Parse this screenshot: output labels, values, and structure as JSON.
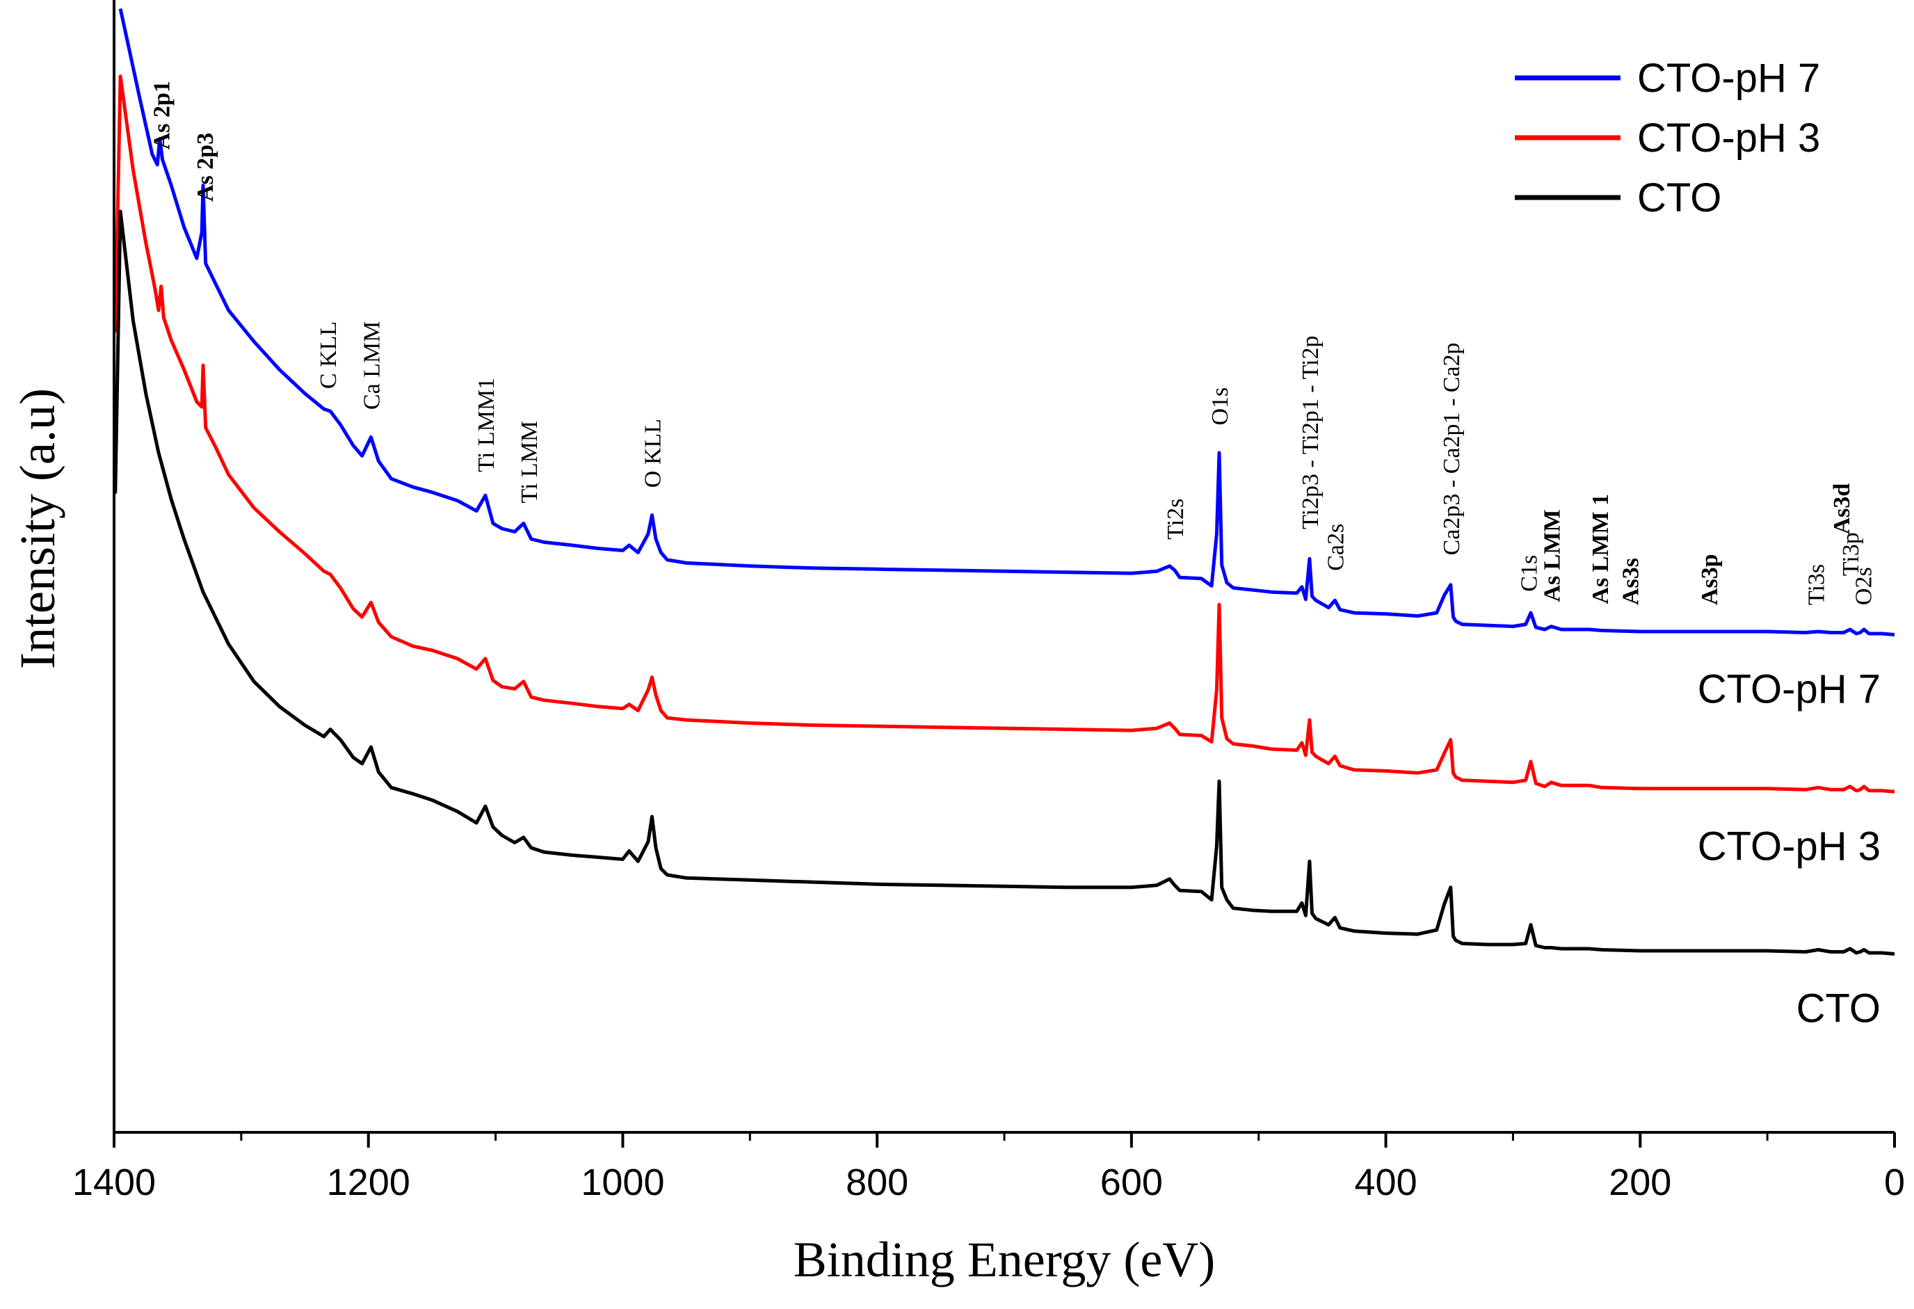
{
  "chart_data": {
    "type": "line",
    "title": "",
    "xlabel": "Binding Energy (eV)",
    "ylabel": "Intensity (a.u)",
    "xlim": [
      1400,
      0
    ],
    "ylim": [
      0,
      100
    ],
    "x_ticks": [
      1400,
      1200,
      1000,
      800,
      600,
      400,
      200,
      0
    ],
    "x_tick_labels": [
      "1400",
      "1200",
      "1000",
      "800",
      "600",
      "400",
      "200",
      "0"
    ],
    "legend": {
      "placement": "top-right",
      "entries": [
        {
          "name": "CTO-pH 7",
          "color": "#0000ff"
        },
        {
          "name": "CTO-pH 3",
          "color": "#ff0000"
        },
        {
          "name": "CTO",
          "color": "#000000"
        }
      ]
    },
    "series": [
      {
        "name": "CTO-pH 7",
        "color": "#0000ff",
        "right_label": "CTO-pH 7",
        "x": [
          1395,
          1380,
          1370,
          1366,
          1364,
          1362,
          1355,
          1345,
          1335,
          1331,
          1330,
          1328,
          1320,
          1310,
          1290,
          1270,
          1250,
          1235,
          1230,
          1222,
          1212,
          1205,
          1198,
          1192,
          1182,
          1165,
          1150,
          1130,
          1115,
          1108,
          1102,
          1095,
          1085,
          1078,
          1072,
          1062,
          1040,
          1020,
          1000,
          995,
          988,
          980,
          977,
          974,
          970,
          965,
          950,
          900,
          850,
          800,
          750,
          700,
          650,
          600,
          580,
          570,
          566,
          562,
          545,
          537,
          533,
          531,
          529,
          525,
          520,
          505,
          490,
          470,
          466,
          463,
          460,
          458,
          455,
          445,
          440,
          436,
          425,
          400,
          375,
          360,
          354,
          349,
          347,
          345,
          340,
          320,
          300,
          290,
          286,
          282,
          275,
          270,
          262,
          240,
          230,
          200,
          150,
          100,
          70,
          60,
          50,
          40,
          35,
          30,
          27,
          24,
          20,
          10,
          0
        ],
        "y": [
          100.5,
          92,
          86.5,
          85.5,
          88,
          86,
          83.5,
          79.5,
          76.5,
          79,
          83.5,
          76,
          74,
          71.5,
          68.5,
          65.8,
          63.5,
          62,
          61.8,
          60.5,
          58.5,
          57.5,
          59.3,
          57,
          55.3,
          54.5,
          54,
          53.2,
          52.2,
          53.7,
          51,
          50.5,
          50.2,
          51,
          49.5,
          49.2,
          48.9,
          48.6,
          48.4,
          48.9,
          48.2,
          50,
          51.8,
          49.5,
          48.2,
          47.5,
          47.2,
          46.9,
          46.7,
          46.6,
          46.5,
          46.4,
          46.3,
          46.2,
          46.4,
          46.9,
          46.5,
          45.8,
          45.7,
          45,
          50,
          57.8,
          47,
          45.3,
          44.8,
          44.6,
          44.4,
          44.3,
          44.9,
          43.7,
          47.6,
          44,
          43.6,
          42.9,
          43.6,
          42.7,
          42.4,
          42.3,
          42.1,
          42.4,
          44.1,
          45.1,
          42,
          41.6,
          41.3,
          41.2,
          41.1,
          41.3,
          42.4,
          41,
          40.8,
          41.1,
          40.8,
          40.8,
          40.7,
          40.6,
          40.6,
          40.6,
          40.5,
          40.6,
          40.5,
          40.5,
          40.8,
          40.4,
          40.5,
          40.8,
          40.4,
          40.4,
          40.3
        ]
      },
      {
        "name": "CTO-pH 3",
        "color": "#ff0000",
        "right_label": "CTO-pH 3",
        "x": [
          1400,
          1399,
          1395,
          1385,
          1375,
          1368,
          1365,
          1363,
          1361,
          1355,
          1345,
          1335,
          1331,
          1330,
          1328,
          1320,
          1310,
          1290,
          1270,
          1250,
          1235,
          1230,
          1222,
          1212,
          1205,
          1198,
          1192,
          1182,
          1165,
          1150,
          1130,
          1115,
          1108,
          1102,
          1095,
          1085,
          1078,
          1072,
          1062,
          1040,
          1020,
          1000,
          995,
          988,
          980,
          977,
          974,
          970,
          965,
          950,
          900,
          850,
          800,
          750,
          700,
          650,
          600,
          580,
          570,
          566,
          562,
          545,
          537,
          533,
          531,
          529,
          525,
          520,
          505,
          490,
          470,
          466,
          463,
          460,
          458,
          455,
          445,
          440,
          436,
          425,
          400,
          375,
          360,
          354,
          349,
          347,
          345,
          340,
          320,
          300,
          290,
          286,
          282,
          275,
          270,
          262,
          240,
          230,
          200,
          150,
          100,
          70,
          60,
          50,
          40,
          35,
          30,
          27,
          24,
          20,
          10,
          0
        ],
        "y": [
          69.5,
          69.5,
          94,
          85,
          78,
          73.7,
          71.5,
          73.8,
          70.8,
          68.6,
          65.8,
          62.7,
          62.2,
          66.2,
          60.2,
          58.3,
          55.7,
          52.5,
          50.2,
          48.1,
          46.4,
          46.1,
          44.8,
          42.8,
          42,
          43.4,
          41.5,
          40.1,
          39.2,
          38.8,
          38,
          37,
          38,
          35.9,
          35.3,
          35.1,
          35.8,
          34.3,
          34,
          33.7,
          33.4,
          33.2,
          33.6,
          33,
          35,
          36.2,
          34.5,
          33,
          32.3,
          32.1,
          31.8,
          31.6,
          31.5,
          31.4,
          31.3,
          31.2,
          31.1,
          31.3,
          31.8,
          31.3,
          30.7,
          30.6,
          30,
          35,
          43.2,
          32.3,
          30.3,
          29.8,
          29.6,
          29.3,
          29.2,
          29.9,
          28.7,
          32.1,
          29,
          28.6,
          27.9,
          28.6,
          27.7,
          27.3,
          27.2,
          27,
          27.3,
          28.9,
          30.2,
          27,
          26.6,
          26.3,
          26.2,
          26.1,
          26.3,
          28.1,
          26,
          25.7,
          26.1,
          25.8,
          25.8,
          25.6,
          25.5,
          25.5,
          25.5,
          25.4,
          25.6,
          25.4,
          25.4,
          25.7,
          25.3,
          25.4,
          25.7,
          25.3,
          25.3,
          25.2
        ]
      },
      {
        "name": "CTO",
        "color": "#000000",
        "right_label": "CTO",
        "x": [
          1400,
          1399,
          1395,
          1385,
          1375,
          1365,
          1355,
          1345,
          1330,
          1310,
          1290,
          1270,
          1250,
          1235,
          1230,
          1222,
          1212,
          1205,
          1198,
          1192,
          1182,
          1165,
          1150,
          1130,
          1115,
          1108,
          1102,
          1095,
          1085,
          1078,
          1072,
          1062,
          1040,
          1020,
          1000,
          995,
          988,
          980,
          977,
          974,
          970,
          965,
          950,
          900,
          850,
          800,
          750,
          700,
          650,
          600,
          580,
          570,
          566,
          562,
          545,
          537,
          533,
          531,
          529,
          525,
          520,
          505,
          490,
          470,
          466,
          463,
          460,
          458,
          455,
          445,
          440,
          436,
          425,
          400,
          375,
          360,
          354,
          349,
          347,
          345,
          340,
          320,
          300,
          290,
          286,
          282,
          275,
          270,
          262,
          240,
          230,
          200,
          150,
          100,
          70,
          60,
          50,
          40,
          35,
          30,
          27,
          24,
          20,
          10,
          0
        ],
        "y": [
          54,
          54,
          81,
          70.5,
          63.5,
          57.8,
          53.3,
          49.5,
          44.4,
          39.4,
          35.8,
          33.4,
          31.6,
          30.5,
          31.2,
          30.2,
          28.5,
          27.9,
          29.5,
          27.1,
          25.6,
          25,
          24.4,
          23.3,
          22.2,
          23.8,
          21.8,
          21,
          20.3,
          20.8,
          19.8,
          19.4,
          19.1,
          18.9,
          18.7,
          19.5,
          18.5,
          20.4,
          22.8,
          19.8,
          17.8,
          17.2,
          16.9,
          16.7,
          16.5,
          16.3,
          16.2,
          16.1,
          16,
          16,
          16.2,
          16.8,
          16.2,
          15.7,
          15.6,
          14.8,
          20,
          26.2,
          16,
          14.8,
          14,
          13.8,
          13.7,
          13.7,
          14.5,
          13.3,
          18.5,
          13.5,
          13,
          12.4,
          13.1,
          12.1,
          11.8,
          11.6,
          11.5,
          11.9,
          14.4,
          16,
          11.3,
          10.9,
          10.6,
          10.5,
          10.5,
          10.6,
          12.4,
          10.4,
          10.2,
          10.2,
          10.1,
          10.1,
          10,
          9.9,
          9.9,
          9.9,
          9.8,
          10,
          9.8,
          9.8,
          10.1,
          9.7,
          9.8,
          10,
          9.7,
          9.7,
          9.6
        ]
      }
    ],
    "peak_annotations": [
      {
        "text": "As 2p1",
        "x": 1363,
        "y": 86,
        "bold": true
      },
      {
        "text": "As 2p3",
        "x": 1329,
        "y": 81,
        "bold": true
      },
      {
        "text": "C KLL",
        "x": 1232,
        "y": 63,
        "bold": false
      },
      {
        "text": "Ca LMM",
        "x": 1198,
        "y": 61,
        "bold": false
      },
      {
        "text": "Ti LMM1",
        "x": 1108,
        "y": 55,
        "bold": false
      },
      {
        "text": "Ti LMM",
        "x": 1074,
        "y": 52,
        "bold": false
      },
      {
        "text": "O KLL",
        "x": 977,
        "y": 53.5,
        "bold": false
      },
      {
        "text": "Ti2s",
        "x": 566,
        "y": 48.5,
        "bold": false
      },
      {
        "text": "O1s",
        "x": 531,
        "y": 59.5,
        "bold": false
      },
      {
        "text": "Ti2p3 - Ti2p1 - Ti2p",
        "x": 460,
        "y": 49.5,
        "bold": false
      },
      {
        "text": "Ca2s",
        "x": 440,
        "y": 45.5,
        "bold": false
      },
      {
        "text": "Ca2p3 - Ca2p1 - Ca2p",
        "x": 349,
        "y": 47,
        "bold": false
      },
      {
        "text": "C1s",
        "x": 288,
        "y": 43.5,
        "bold": false
      },
      {
        "text": "As LMM",
        "x": 270,
        "y": 42.5,
        "bold": true
      },
      {
        "text": "As LMM 1",
        "x": 232,
        "y": 42.3,
        "bold": true
      },
      {
        "text": "As3s",
        "x": 208,
        "y": 42.2,
        "bold": true
      },
      {
        "text": "As3p",
        "x": 146,
        "y": 42.2,
        "bold": true
      },
      {
        "text": "Ti3s",
        "x": 62,
        "y": 42.2,
        "bold": false
      },
      {
        "text": "As3d",
        "x": 42,
        "y": 49,
        "bold": true
      },
      {
        "text": "Ti3p",
        "x": 35,
        "y": 45,
        "bold": false
      },
      {
        "text": "O2s",
        "x": 25,
        "y": 42.2,
        "bold": false
      }
    ]
  }
}
